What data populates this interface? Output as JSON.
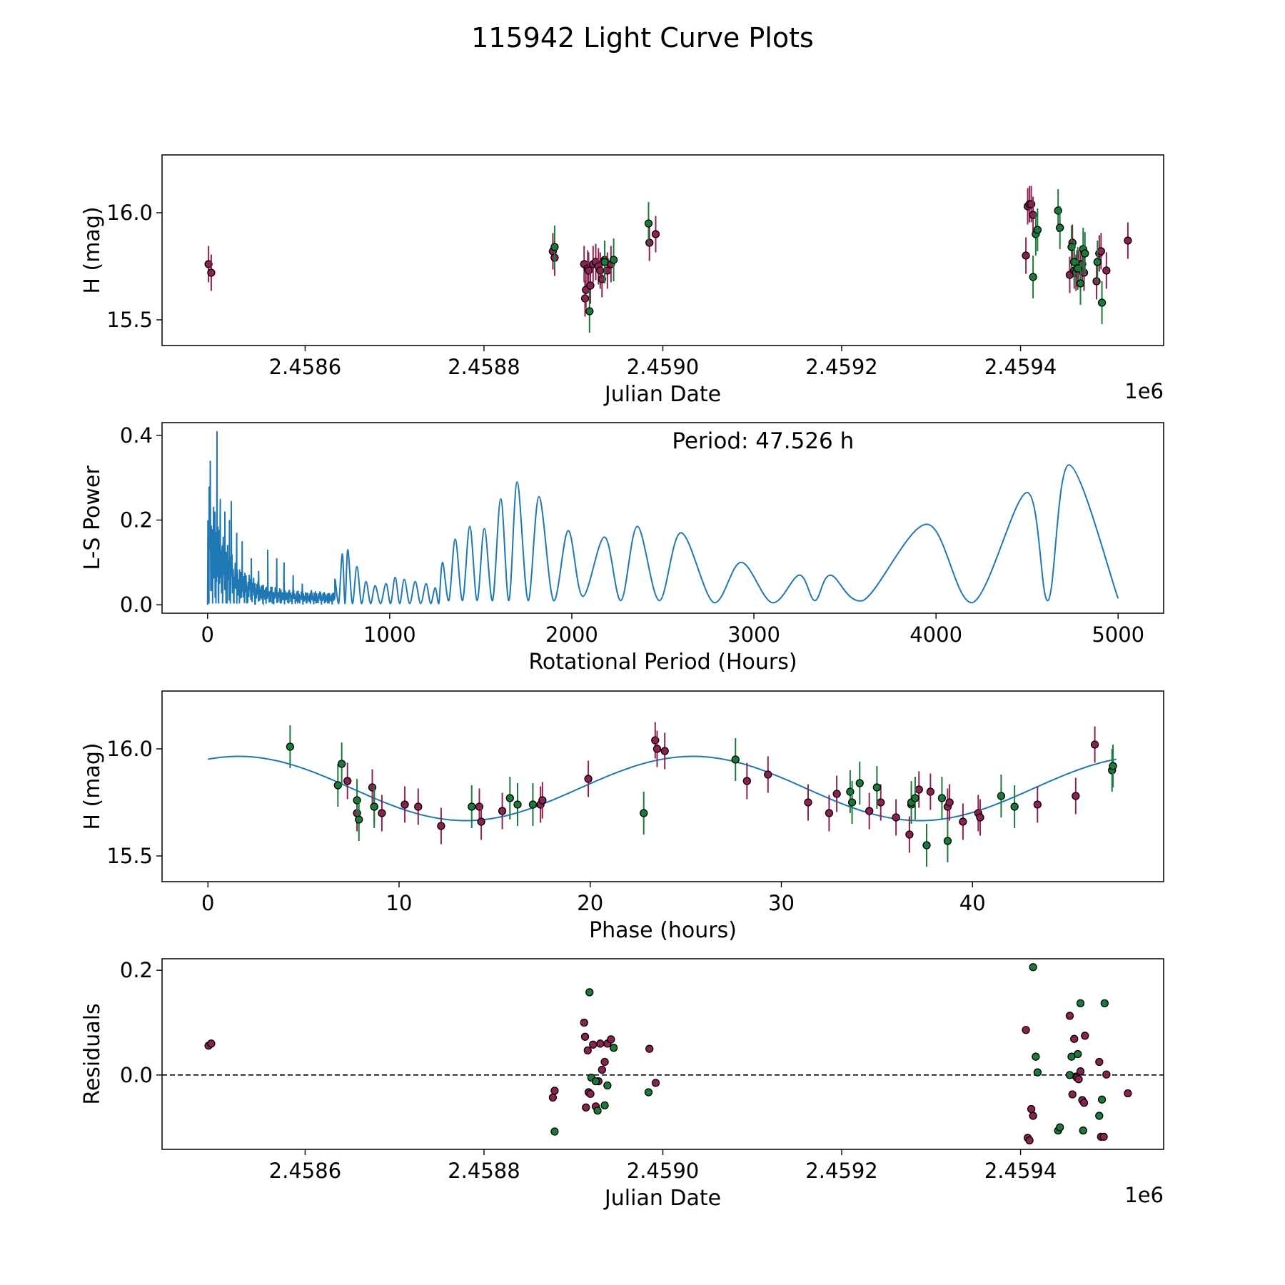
{
  "title": "115942 Light Curve Plots",
  "colors": {
    "magenta": "#8b2252",
    "green": "#1a7a3a",
    "line": "#1f77b4",
    "edge": "#000000",
    "axes": "#000000"
  },
  "chart_data": [
    {
      "id": "lightcurve",
      "type": "scatter",
      "xlabel": "Julian Date",
      "ylabel": "H (mag)",
      "offset_label": "1e6",
      "xlim": [
        2458440,
        2459560
      ],
      "ylim": [
        15.38,
        16.27
      ],
      "x_ticks": [
        2458600,
        2458800,
        2459000,
        2459200,
        2459400
      ],
      "x_tick_labels": [
        "2.4586",
        "2.4588",
        "2.4590",
        "2.4592",
        "2.4594"
      ],
      "y_ticks": [
        15.5,
        16.0
      ],
      "y_tick_labels": [
        "15.5",
        "16.0"
      ],
      "series": [
        {
          "name": "filter-magenta",
          "color": "#8b2252",
          "err": 0.085,
          "points": [
            [
              2458492,
              15.76
            ],
            [
              2458495,
              15.72
            ],
            [
              2458877,
              15.82
            ],
            [
              2458879,
              15.79
            ],
            [
              2458912,
              15.76
            ],
            [
              2458913,
              15.6
            ],
            [
              2458914,
              15.64
            ],
            [
              2458916,
              15.74
            ],
            [
              2458917,
              15.73
            ],
            [
              2458919,
              15.66
            ],
            [
              2458922,
              15.76
            ],
            [
              2458925,
              15.77
            ],
            [
              2458928,
              15.75
            ],
            [
              2458930,
              15.73
            ],
            [
              2458932,
              15.69
            ],
            [
              2458935,
              15.78
            ],
            [
              2458938,
              15.73
            ],
            [
              2458942,
              15.76
            ],
            [
              2458985,
              15.86
            ],
            [
              2458992,
              15.9
            ],
            [
              2459406,
              15.8
            ],
            [
              2459408,
              16.03
            ],
            [
              2459410,
              16.04
            ],
            [
              2459412,
              16.04
            ],
            [
              2459414,
              15.99
            ],
            [
              2459455,
              15.71
            ],
            [
              2459458,
              15.86
            ],
            [
              2459460,
              15.73
            ],
            [
              2459462,
              15.72
            ],
            [
              2459463,
              15.74
            ],
            [
              2459465,
              15.74
            ],
            [
              2459467,
              15.76
            ],
            [
              2459469,
              15.76
            ],
            [
              2459471,
              15.72
            ],
            [
              2459485,
              15.68
            ],
            [
              2459488,
              15.81
            ],
            [
              2459490,
              15.82
            ],
            [
              2459496,
              15.73
            ],
            [
              2459520,
              15.87
            ]
          ]
        },
        {
          "name": "filter-green",
          "color": "#1a7a3a",
          "err": 0.1,
          "points": [
            [
              2458879,
              15.84
            ],
            [
              2458918,
              15.54
            ],
            [
              2458935,
              15.77
            ],
            [
              2458945,
              15.78
            ],
            [
              2458984,
              15.95
            ],
            [
              2459414,
              15.7
            ],
            [
              2459417,
              15.9
            ],
            [
              2459419,
              15.92
            ],
            [
              2459442,
              16.01
            ],
            [
              2459444,
              15.93
            ],
            [
              2459457,
              15.84
            ],
            [
              2459460,
              15.77
            ],
            [
              2459464,
              15.74
            ],
            [
              2459467,
              15.67
            ],
            [
              2459470,
              15.83
            ],
            [
              2459472,
              15.81
            ],
            [
              2459486,
              15.77
            ],
            [
              2459491,
              15.58
            ]
          ]
        }
      ]
    },
    {
      "id": "periodogram",
      "type": "line",
      "xlabel": "Rotational Period (Hours)",
      "ylabel": "L-S Power",
      "annotation": "Period: 47.526 h",
      "xlim": [
        -250,
        5250
      ],
      "ylim": [
        -0.02,
        0.43
      ],
      "x_ticks": [
        0,
        1000,
        2000,
        3000,
        4000,
        5000
      ],
      "x_tick_labels": [
        "0",
        "1000",
        "2000",
        "3000",
        "4000",
        "5000"
      ],
      "y_ticks": [
        0.0,
        0.2,
        0.4
      ],
      "y_tick_labels": [
        "0.0",
        "0.2",
        "0.4"
      ],
      "peaks": [
        [
          15,
          0.34
        ],
        [
          40,
          0.22
        ],
        [
          52,
          0.41
        ],
        [
          70,
          0.25
        ],
        [
          95,
          0.22
        ],
        [
          120,
          0.2
        ],
        [
          130,
          0.245
        ],
        [
          160,
          0.17
        ],
        [
          190,
          0.15
        ],
        [
          240,
          0.11
        ],
        [
          280,
          0.08
        ],
        [
          330,
          0.13
        ],
        [
          380,
          0.11
        ],
        [
          420,
          0.1
        ],
        [
          470,
          0.07
        ],
        [
          520,
          0.05
        ],
        [
          570,
          0.035
        ],
        [
          620,
          0.03
        ],
        [
          700,
          0.06
        ],
        [
          740,
          0.12
        ],
        [
          770,
          0.13
        ],
        [
          820,
          0.09
        ],
        [
          870,
          0.055
        ],
        [
          920,
          0.045
        ],
        [
          980,
          0.05
        ],
        [
          1030,
          0.065
        ],
        [
          1080,
          0.06
        ],
        [
          1140,
          0.055
        ],
        [
          1200,
          0.05
        ],
        [
          1250,
          0.04
        ],
        [
          1290,
          0.1
        ],
        [
          1360,
          0.155
        ],
        [
          1440,
          0.185
        ],
        [
          1520,
          0.18
        ],
        [
          1610,
          0.25
        ],
        [
          1700,
          0.29
        ],
        [
          1820,
          0.255
        ],
        [
          1980,
          0.175
        ],
        [
          2180,
          0.16
        ],
        [
          2360,
          0.185
        ],
        [
          2600,
          0.17
        ],
        [
          2930,
          0.1
        ],
        [
          3250,
          0.07
        ],
        [
          3420,
          0.07
        ],
        [
          3950,
          0.19
        ],
        [
          4500,
          0.265
        ],
        [
          4730,
          0.33
        ]
      ],
      "troughs": [
        [
          2060,
          0.02
        ],
        [
          2270,
          0.01
        ],
        [
          2480,
          0.01
        ],
        [
          2780,
          0.005
        ],
        [
          3100,
          0.005
        ],
        [
          3600,
          0.01
        ],
        [
          4200,
          0.005
        ],
        [
          5000,
          0.015
        ]
      ]
    },
    {
      "id": "phase",
      "type": "scatter",
      "xlabel": "Phase (hours)",
      "ylabel": "H (mag)",
      "xlim": [
        -2.4,
        50.0
      ],
      "ylim": [
        15.38,
        16.27
      ],
      "x_ticks": [
        0,
        10,
        20,
        30,
        40
      ],
      "x_tick_labels": [
        "0",
        "10",
        "20",
        "30",
        "40"
      ],
      "y_ticks": [
        15.5,
        16.0
      ],
      "y_tick_labels": [
        "15.5",
        "16.0"
      ],
      "model": {
        "mean": 15.815,
        "amp": 0.15,
        "period": 47.526,
        "peak_phase": 1.6,
        "harmonic": 0.0
      },
      "series": [
        {
          "name": "filter-magenta",
          "color": "#8b2252",
          "err": 0.085,
          "points": [
            [
              7.3,
              15.85
            ],
            [
              7.8,
              15.7
            ],
            [
              8.6,
              15.82
            ],
            [
              8.7,
              15.73
            ],
            [
              9.1,
              15.7
            ],
            [
              10.3,
              15.74
            ],
            [
              11.0,
              15.73
            ],
            [
              12.2,
              15.64
            ],
            [
              14.2,
              15.73
            ],
            [
              14.3,
              15.66
            ],
            [
              15.4,
              15.71
            ],
            [
              17.4,
              15.74
            ],
            [
              17.5,
              15.76
            ],
            [
              19.9,
              15.86
            ],
            [
              23.4,
              16.04
            ],
            [
              23.5,
              16.0
            ],
            [
              23.9,
              15.99
            ],
            [
              28.2,
              15.85
            ],
            [
              29.3,
              15.88
            ],
            [
              31.4,
              15.75
            ],
            [
              32.5,
              15.7
            ],
            [
              32.9,
              15.79
            ],
            [
              34.6,
              15.71
            ],
            [
              35.2,
              15.75
            ],
            [
              36.0,
              15.68
            ],
            [
              36.7,
              15.6
            ],
            [
              36.8,
              15.74
            ],
            [
              37.2,
              15.81
            ],
            [
              37.8,
              15.8
            ],
            [
              38.7,
              15.73
            ],
            [
              38.8,
              15.75
            ],
            [
              39.5,
              15.66
            ],
            [
              40.3,
              15.7
            ],
            [
              40.4,
              15.68
            ],
            [
              43.4,
              15.74
            ],
            [
              45.4,
              15.78
            ],
            [
              46.4,
              16.02
            ]
          ]
        },
        {
          "name": "filter-green",
          "color": "#1a7a3a",
          "err": 0.1,
          "points": [
            [
              4.3,
              16.01
            ],
            [
              6.8,
              15.83
            ],
            [
              7.0,
              15.93
            ],
            [
              7.8,
              15.76
            ],
            [
              7.9,
              15.67
            ],
            [
              8.7,
              15.73
            ],
            [
              13.8,
              15.73
            ],
            [
              15.8,
              15.77
            ],
            [
              16.2,
              15.74
            ],
            [
              17.0,
              15.74
            ],
            [
              22.8,
              15.7
            ],
            [
              27.6,
              15.95
            ],
            [
              33.6,
              15.8
            ],
            [
              33.7,
              15.75
            ],
            [
              34.1,
              15.84
            ],
            [
              35.0,
              15.82
            ],
            [
              36.8,
              15.75
            ],
            [
              37.0,
              15.77
            ],
            [
              37.6,
              15.55
            ],
            [
              38.4,
              15.77
            ],
            [
              38.7,
              15.57
            ],
            [
              41.5,
              15.78
            ],
            [
              42.2,
              15.73
            ],
            [
              47.3,
              15.9
            ],
            [
              47.35,
              15.92
            ]
          ]
        }
      ]
    },
    {
      "id": "residuals",
      "type": "scatter",
      "xlabel": "Julian Date",
      "ylabel": "Residuals",
      "offset_label": "1e6",
      "xlim": [
        2458440,
        2459560
      ],
      "ylim": [
        -0.142,
        0.222
      ],
      "x_ticks": [
        2458600,
        2458800,
        2459000,
        2459200,
        2459400
      ],
      "x_tick_labels": [
        "2.4586",
        "2.4588",
        "2.4590",
        "2.4592",
        "2.4594"
      ],
      "y_ticks": [
        0.0,
        0.2
      ],
      "y_tick_labels": [
        "0.0",
        "0.2"
      ],
      "zero_line": 0.0,
      "series": [
        {
          "name": "filter-magenta",
          "color": "#8b2252",
          "points": [
            [
              2458492,
              0.056
            ],
            [
              2458495,
              0.06
            ],
            [
              2458877,
              -0.043
            ],
            [
              2458879,
              -0.03
            ],
            [
              2458912,
              0.1
            ],
            [
              2458913,
              0.073
            ],
            [
              2458914,
              -0.062
            ],
            [
              2458916,
              0.047
            ],
            [
              2458917,
              -0.033
            ],
            [
              2458919,
              -0.036
            ],
            [
              2458922,
              0.058
            ],
            [
              2458925,
              -0.06
            ],
            [
              2458928,
              -0.012
            ],
            [
              2458930,
              0.06
            ],
            [
              2458932,
              0.01
            ],
            [
              2458935,
              0.025
            ],
            [
              2458938,
              0.06
            ],
            [
              2458942,
              0.068
            ],
            [
              2458985,
              0.05
            ],
            [
              2458992,
              -0.015
            ],
            [
              2459406,
              0.086
            ],
            [
              2459408,
              -0.12
            ],
            [
              2459410,
              -0.125
            ],
            [
              2459412,
              -0.065
            ],
            [
              2459414,
              -0.078
            ],
            [
              2459455,
              0.113
            ],
            [
              2459458,
              -0.037
            ],
            [
              2459460,
              0.069
            ],
            [
              2459462,
              -0.003
            ],
            [
              2459463,
              -0.005
            ],
            [
              2459465,
              -0.008
            ],
            [
              2459467,
              0.007
            ],
            [
              2459469,
              -0.048
            ],
            [
              2459471,
              -0.053
            ],
            [
              2459472,
              0.075
            ],
            [
              2459488,
              0.025
            ],
            [
              2459490,
              -0.118
            ],
            [
              2459493,
              -0.118
            ],
            [
              2459496,
              0.001
            ],
            [
              2459520,
              -0.035
            ]
          ]
        },
        {
          "name": "filter-green",
          "color": "#1a7a3a",
          "points": [
            [
              2458879,
              -0.108
            ],
            [
              2458918,
              0.158
            ],
            [
              2458920,
              -0.005
            ],
            [
              2458925,
              -0.012
            ],
            [
              2458927,
              -0.068
            ],
            [
              2458935,
              -0.058
            ],
            [
              2458938,
              -0.02
            ],
            [
              2458945,
              0.052
            ],
            [
              2458984,
              -0.033
            ],
            [
              2459414,
              0.206
            ],
            [
              2459417,
              0.035
            ],
            [
              2459419,
              0.005
            ],
            [
              2459442,
              -0.106
            ],
            [
              2459444,
              -0.1
            ],
            [
              2459455,
              0.0
            ],
            [
              2459457,
              0.035
            ],
            [
              2459464,
              0.04
            ],
            [
              2459467,
              0.137
            ],
            [
              2459470,
              -0.106
            ],
            [
              2459488,
              -0.078
            ],
            [
              2459491,
              -0.047
            ],
            [
              2459494,
              0.137
            ]
          ]
        }
      ]
    }
  ]
}
